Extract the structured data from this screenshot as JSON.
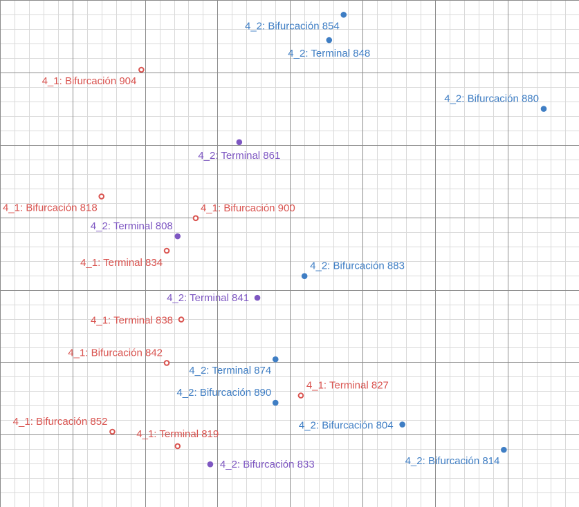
{
  "chart_data": {
    "type": "scatter",
    "title": "",
    "xlabel": "",
    "ylabel": "",
    "grid": true,
    "xlim": [
      0,
      8
    ],
    "ylim": [
      0,
      7
    ],
    "colors": {
      "red": "#d9534f",
      "purple": "#7e57c2",
      "blue": "#3f7ec4",
      "grid_major": "#8a8a8a",
      "grid_minor": "#d9d9d9"
    },
    "points": [
      {
        "label": "4_2: Bifurcación 854",
        "x": 4.74,
        "y": 6.8,
        "color": "blue",
        "marker": "filled",
        "anchor": "end",
        "dx": -6,
        "dy": 21
      },
      {
        "label": "4_2: Terminal 848",
        "x": 4.54,
        "y": 6.45,
        "color": "blue",
        "marker": "filled",
        "anchor": "middle",
        "dx": 0,
        "dy": 24
      },
      {
        "label": "4_1: Bifurcación 904",
        "x": 1.95,
        "y": 6.04,
        "color": "red",
        "marker": "hollow",
        "anchor": "end",
        "dx": -7,
        "dy": 21
      },
      {
        "label": "4_2: Bifurcación 880",
        "x": 7.5,
        "y": 5.5,
        "color": "blue",
        "marker": "filled",
        "anchor": "end",
        "dx": -7,
        "dy": -10
      },
      {
        "label": "4_2: Terminal 861",
        "x": 3.3,
        "y": 5.04,
        "color": "purple",
        "marker": "filled",
        "anchor": "middle",
        "dx": 0,
        "dy": 24
      },
      {
        "label": "4_1: Bifurcación 818",
        "x": 1.4,
        "y": 4.29,
        "color": "red",
        "marker": "hollow",
        "anchor": "end",
        "dx": -6,
        "dy": 21
      },
      {
        "label": "4_1: Bifurcación 900",
        "x": 2.7,
        "y": 3.99,
        "color": "red",
        "marker": "hollow",
        "anchor": "start",
        "dx": 7,
        "dy": -10
      },
      {
        "label": "4_2: Terminal 808",
        "x": 2.45,
        "y": 3.74,
        "color": "purple",
        "marker": "filled",
        "anchor": "end",
        "dx": -7,
        "dy": -10
      },
      {
        "label": "4_1: Terminal 834",
        "x": 2.3,
        "y": 3.54,
        "color": "red",
        "marker": "hollow",
        "anchor": "end",
        "dx": -6,
        "dy": 22
      },
      {
        "label": "4_2: Bifurcación 883",
        "x": 4.2,
        "y": 3.19,
        "color": "blue",
        "marker": "filled",
        "anchor": "start",
        "dx": 8,
        "dy": -10
      },
      {
        "label": "4_2: Terminal 841",
        "x": 3.55,
        "y": 2.89,
        "color": "purple",
        "marker": "filled",
        "anchor": "end",
        "dx": -12,
        "dy": 5
      },
      {
        "label": "4_1: Terminal 838",
        "x": 2.5,
        "y": 2.59,
        "color": "red",
        "marker": "hollow",
        "anchor": "end",
        "dx": -12,
        "dy": 6
      },
      {
        "label": "4_1: Bifurcación 842",
        "x": 2.3,
        "y": 1.99,
        "color": "red",
        "marker": "hollow",
        "anchor": "end",
        "dx": -6,
        "dy": -10
      },
      {
        "label": "4_2: Terminal 874",
        "x": 3.8,
        "y": 2.04,
        "color": "blue",
        "marker": "filled",
        "anchor": "end",
        "dx": -6,
        "dy": 21
      },
      {
        "label": "4_1: Terminal 827",
        "x": 4.15,
        "y": 1.54,
        "color": "red",
        "marker": "hollow",
        "anchor": "start",
        "dx": 8,
        "dy": -10
      },
      {
        "label": "4_2: Bifurcación 890",
        "x": 3.8,
        "y": 1.44,
        "color": "blue",
        "marker": "filled",
        "anchor": "end",
        "dx": -6,
        "dy": -10
      },
      {
        "label": "4_2: Bifurcación 804",
        "x": 5.55,
        "y": 1.14,
        "color": "blue",
        "marker": "filled",
        "anchor": "end",
        "dx": -13,
        "dy": 6
      },
      {
        "label": "4_1: Bifurcación 852",
        "x": 1.55,
        "y": 1.04,
        "color": "red",
        "marker": "hollow",
        "anchor": "end",
        "dx": -7,
        "dy": -10
      },
      {
        "label": "4_1: Terminal 819",
        "x": 2.45,
        "y": 0.84,
        "color": "red",
        "marker": "hollow",
        "anchor": "middle",
        "dx": 0,
        "dy": -13
      },
      {
        "label": "4_2: Bifurcación 814",
        "x": 6.95,
        "y": 0.79,
        "color": "blue",
        "marker": "filled",
        "anchor": "end",
        "dx": -6,
        "dy": 21
      },
      {
        "label": "4_2: Bifurcación 833",
        "x": 2.9,
        "y": 0.59,
        "color": "purple",
        "marker": "filled",
        "anchor": "start",
        "dx": 14,
        "dy": 5
      }
    ]
  }
}
